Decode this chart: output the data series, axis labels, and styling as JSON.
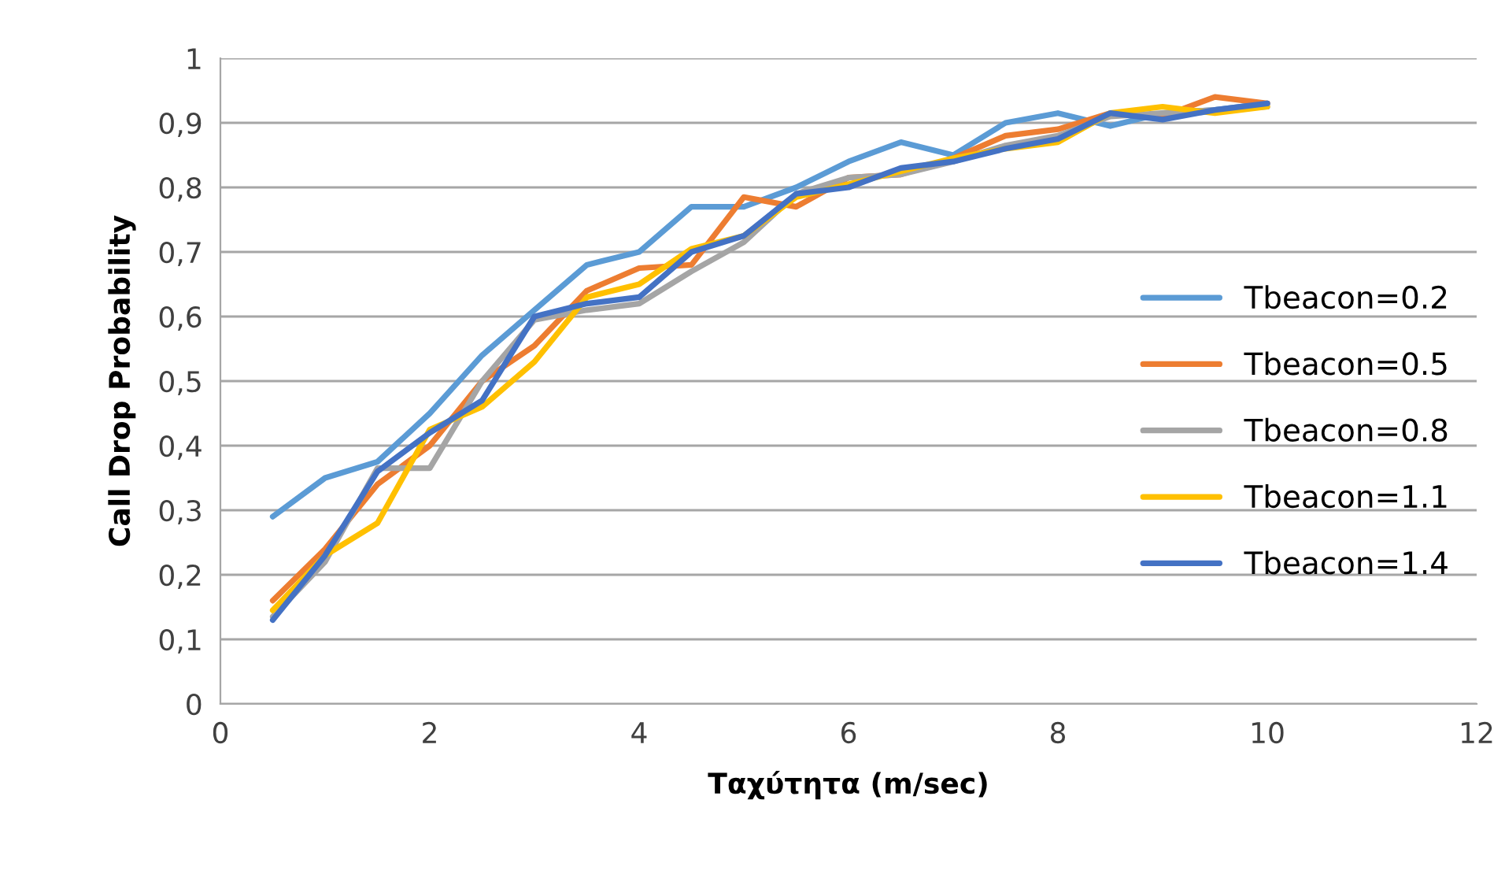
{
  "chart_data": {
    "type": "line",
    "xlabel": "Ταχύτητα (m/sec)",
    "ylabel": "Call Drop Probability",
    "x": [
      0.5,
      1,
      1.5,
      2,
      2.5,
      3,
      3.5,
      4,
      4.5,
      5,
      5.5,
      6,
      6.5,
      7,
      7.5,
      8,
      8.5,
      9,
      9.5,
      10
    ],
    "series": [
      {
        "name": "Tbeacon=0.2",
        "color": "#5b9bd5",
        "values": [
          0.29,
          0.35,
          0.375,
          0.45,
          0.54,
          0.61,
          0.68,
          0.7,
          0.77,
          0.77,
          0.8,
          0.84,
          0.87,
          0.85,
          0.9,
          0.915,
          0.895,
          0.915,
          0.92,
          0.93
        ]
      },
      {
        "name": "Tbeacon=0.5",
        "color": "#ed7d31",
        "values": [
          0.16,
          0.24,
          0.34,
          0.4,
          0.5,
          0.555,
          0.64,
          0.675,
          0.68,
          0.785,
          0.77,
          0.815,
          0.82,
          0.845,
          0.88,
          0.89,
          0.915,
          0.91,
          0.94,
          0.93
        ]
      },
      {
        "name": "Tbeacon=0.8",
        "color": "#a5a5a5",
        "values": [
          0.135,
          0.22,
          0.365,
          0.365,
          0.5,
          0.595,
          0.61,
          0.62,
          0.67,
          0.715,
          0.79,
          0.815,
          0.82,
          0.84,
          0.865,
          0.88,
          0.91,
          0.915,
          0.92,
          0.925
        ]
      },
      {
        "name": "Tbeacon=1.1",
        "color": "#ffc000",
        "values": [
          0.145,
          0.23,
          0.28,
          0.425,
          0.46,
          0.53,
          0.63,
          0.65,
          0.705,
          0.725,
          0.785,
          0.805,
          0.825,
          0.845,
          0.86,
          0.87,
          0.915,
          0.925,
          0.915,
          0.925
        ]
      },
      {
        "name": "Tbeacon=1.4",
        "color": "#4472c4",
        "values": [
          0.13,
          0.23,
          0.36,
          0.42,
          0.47,
          0.6,
          0.62,
          0.63,
          0.7,
          0.725,
          0.79,
          0.8,
          0.83,
          0.84,
          0.86,
          0.875,
          0.915,
          0.905,
          0.92,
          0.93
        ]
      }
    ],
    "xlim": [
      0,
      12
    ],
    "xticks": [
      0,
      2,
      4,
      6,
      8,
      10,
      12
    ],
    "ylim": [
      0,
      1
    ],
    "yticks": [
      0,
      {
        "value": 0.1,
        "label": "0,1"
      },
      {
        "value": 0.2,
        "label": "0,2"
      },
      {
        "value": 0.3,
        "label": "0,3"
      },
      {
        "value": 0.4,
        "label": "0,4"
      },
      {
        "value": 0.5,
        "label": "0,5"
      },
      {
        "value": 0.6,
        "label": "0,6"
      },
      {
        "value": 0.7,
        "label": "0,7"
      },
      {
        "value": 0.8,
        "label": "0,8"
      },
      {
        "value": 0.9,
        "label": "0,9"
      },
      1
    ],
    "grid": "y",
    "legend": "right",
    "marker": "none",
    "line_style": "solid"
  }
}
